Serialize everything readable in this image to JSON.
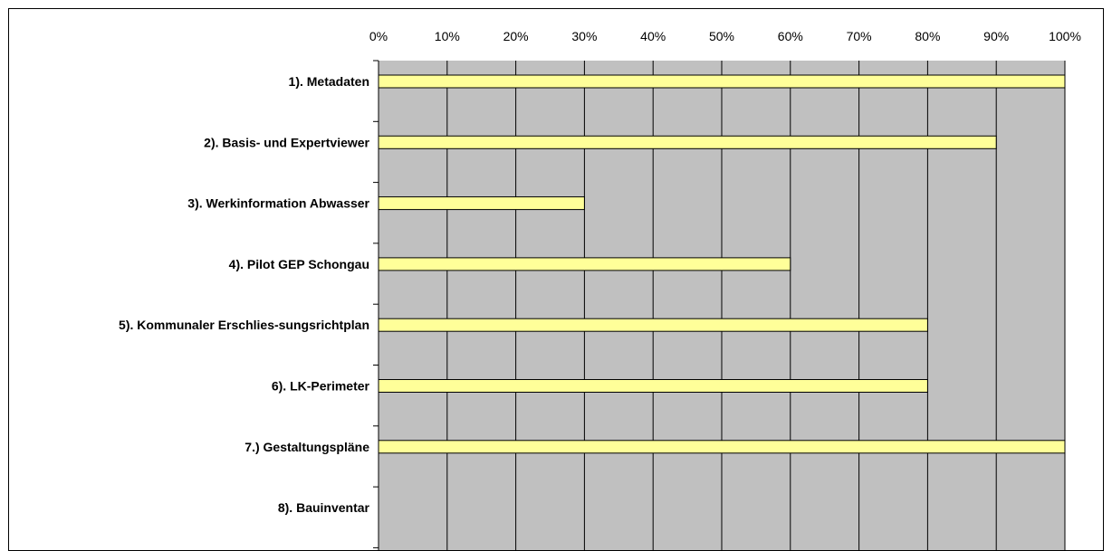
{
  "chart_data": {
    "type": "bar",
    "orientation": "horizontal",
    "categories": [
      "1).  Metadaten",
      "2).  Basis- und Expertviewer",
      "3).  Werkinformation Abwasser",
      "4).  Pilot GEP Schongau",
      "5).  Kommunaler Erschlies-sungsrichtplan",
      "6).  LK-Perimeter",
      "7.) Gestaltungspläne",
      "8).  Bauinventar"
    ],
    "values": [
      100,
      90,
      30,
      60,
      80,
      80,
      100,
      0
    ],
    "xlim": [
      0,
      100
    ],
    "x_ticks": [
      "0%",
      "10%",
      "20%",
      "30%",
      "40%",
      "50%",
      "60%",
      "70%",
      "80%",
      "90%",
      "100%"
    ],
    "x_axis_position": "top",
    "grid": true,
    "legend": "none",
    "colors": {
      "plot_background": "#c0c0c0",
      "bar_fill": "#ffff99",
      "bar_stroke": "#000000",
      "gridline": "#000000"
    }
  }
}
